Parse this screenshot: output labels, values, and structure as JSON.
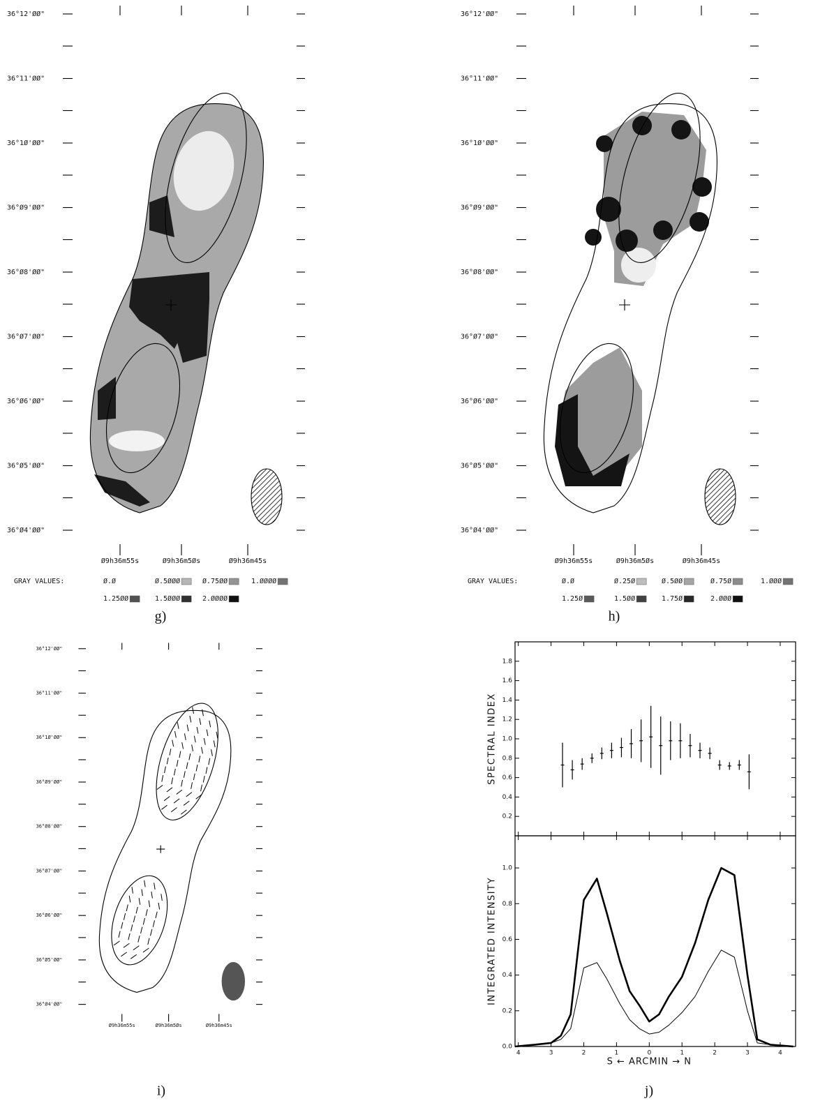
{
  "maps": [
    {
      "dec_labels": [
        "36°12'ØØ\"",
        "36°11'ØØ\"",
        "36°1Ø'ØØ\"",
        "36°Ø9'ØØ\"",
        "36°Ø8'ØØ\"",
        "36°Ø7'ØØ\"",
        "36°Ø6'ØØ\"",
        "36°Ø5'ØØ\"",
        "36°Ø4'ØØ\""
      ],
      "ra_labels": [
        "Ø9h36m55s",
        "Ø9h36m5Øs",
        "Ø9h36m45s"
      ],
      "gray_values_title": "GRAY VALUES:",
      "gray_values": [
        "Ø.Ø",
        "Ø.5ØØØ",
        "Ø.75ØØ",
        "1.ØØØØ",
        "1.25ØØ",
        "1.5ØØØ",
        "2.ØØØØ"
      ],
      "caption": "g)"
    },
    {
      "dec_labels": [
        "36°12'ØØ\"",
        "36°11'ØØ\"",
        "36°1Ø'ØØ\"",
        "36°Ø9'ØØ\"",
        "36°Ø8'ØØ\"",
        "36°Ø7'ØØ\"",
        "36°Ø6'ØØ\"",
        "36°Ø5'ØØ\"",
        "36°Ø4'ØØ\""
      ],
      "ra_labels": [
        "Ø9h36m55s",
        "Ø9h36m5Øs",
        "Ø9h36m45s"
      ],
      "gray_values_title": "GRAY VALUES:",
      "gray_values": [
        "Ø.Ø",
        "Ø.25Ø",
        "Ø.5ØØ",
        "Ø.75Ø",
        "1.ØØØ",
        "1.25Ø",
        "1.5ØØ",
        "1.75Ø",
        "2.ØØØ"
      ],
      "caption": "h)"
    },
    {
      "dec_labels": [
        "36°12'ØØ\"",
        "36°11'ØØ\"",
        "36°1Ø'ØØ\"",
        "36°Ø9'ØØ\"",
        "36°Ø8'ØØ\"",
        "36°Ø7'ØØ\"",
        "36°Ø6'ØØ\"",
        "36°Ø5'ØØ\"",
        "36°Ø4'ØØ\""
      ],
      "ra_labels": [
        "Ø9h36m55s",
        "Ø9h36m5Øs",
        "Ø9h36m45s"
      ],
      "caption": "i)"
    }
  ],
  "chart_data": [
    {
      "type": "errorbar",
      "ylabel": "SPECTRAL INDEX",
      "x": [
        -2.65,
        -2.35,
        -2.05,
        -1.75,
        -1.45,
        -1.15,
        -0.85,
        -0.55,
        -0.25,
        0.05,
        0.35,
        0.65,
        0.95,
        1.25,
        1.55,
        1.85,
        2.15,
        2.45,
        2.75,
        3.05
      ],
      "values": [
        0.73,
        0.68,
        0.74,
        0.8,
        0.85,
        0.88,
        0.91,
        0.95,
        0.98,
        1.02,
        0.93,
        0.98,
        0.98,
        0.93,
        0.88,
        0.85,
        0.73,
        0.72,
        0.73,
        0.66
      ],
      "errors": [
        0.23,
        0.1,
        0.06,
        0.05,
        0.06,
        0.08,
        0.1,
        0.15,
        0.22,
        0.32,
        0.3,
        0.2,
        0.18,
        0.12,
        0.08,
        0.06,
        0.05,
        0.04,
        0.05,
        0.18
      ],
      "xlim": [
        -4.1,
        4.47
      ],
      "ylim": [
        0,
        2.0
      ],
      "yticks": [
        0.2,
        0.4,
        0.6,
        0.8,
        {
          "value": 1,
          "label": "1.0"
        },
        1.2,
        1.4,
        1.6,
        1.8
      ]
    },
    {
      "type": "line",
      "ylabel": "INTEGRATED INTENSITY",
      "xlabel": "S ← ARCMIN → N",
      "x": [
        -4.1,
        -3.5,
        -3.0,
        -2.7,
        -2.4,
        -2.0,
        -1.6,
        -1.3,
        -0.9,
        -0.6,
        -0.3,
        0,
        0.3,
        0.6,
        1.0,
        1.4,
        1.8,
        2.2,
        2.6,
        3.0,
        3.3,
        3.7,
        4.4
      ],
      "series": [
        {
          "color": "#000000",
          "linewidth": 2.6,
          "values": [
            0,
            0.01,
            0.02,
            0.06,
            0.18,
            0.82,
            0.94,
            0.75,
            0.48,
            0.31,
            0.23,
            0.14,
            0.18,
            0.28,
            0.39,
            0.58,
            0.82,
            1.0,
            0.96,
            0.4,
            0.04,
            0.01,
            0
          ]
        },
        {
          "color": "#000000",
          "linewidth": 1,
          "values": [
            0,
            0.01,
            0.02,
            0.04,
            0.1,
            0.44,
            0.47,
            0.38,
            0.24,
            0.15,
            0.1,
            0.07,
            0.08,
            0.12,
            0.19,
            0.28,
            0.42,
            0.54,
            0.5,
            0.2,
            0.02,
            0.01,
            0
          ]
        }
      ],
      "xlim": [
        -4.1,
        4.47
      ],
      "ylim": [
        0,
        1.18
      ],
      "xticks": [
        {
          "value": -4,
          "label": "4"
        },
        {
          "value": -3,
          "label": "3"
        },
        {
          "value": -2,
          "label": "2"
        },
        {
          "value": -1,
          "label": "1"
        },
        0,
        1,
        2,
        3,
        4
      ],
      "yticks": [
        {
          "value": 0,
          "label": "0.0"
        },
        0.2,
        0.4,
        0.6,
        0.8,
        {
          "value": 1,
          "label": "1.0"
        }
      ]
    }
  ],
  "caption": "j)"
}
